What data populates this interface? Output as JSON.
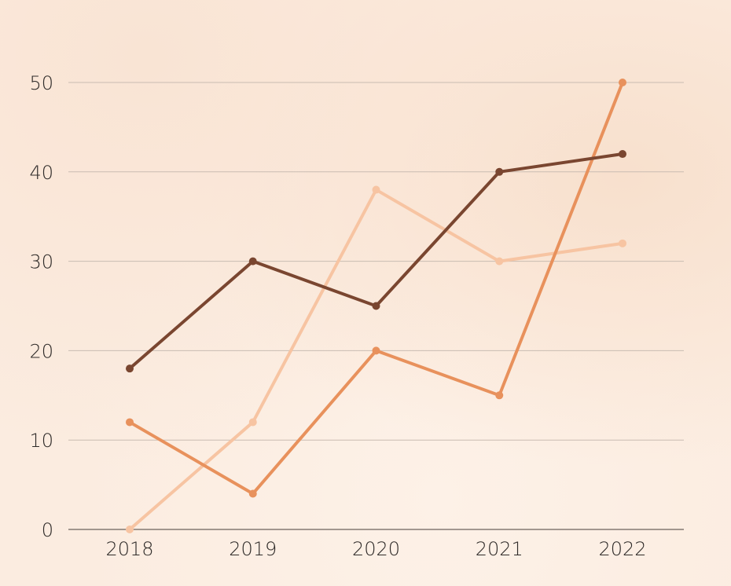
{
  "chart_data": {
    "type": "line",
    "title": "",
    "xlabel": "",
    "ylabel": "",
    "categories": [
      "2018",
      "2019",
      "2020",
      "2021",
      "2022"
    ],
    "ylim": [
      0,
      50
    ],
    "yticks": [
      0,
      10,
      20,
      30,
      40,
      50
    ],
    "grid": true,
    "legend": "none",
    "series": [
      {
        "values": [
          18,
          30,
          25,
          40,
          42
        ],
        "color": "#7a4630"
      },
      {
        "values": [
          0,
          12,
          38,
          30,
          32
        ],
        "color": "#f7c4a2"
      },
      {
        "values": [
          12,
          4,
          20,
          15,
          50
        ],
        "color": "#e8915c"
      }
    ]
  }
}
